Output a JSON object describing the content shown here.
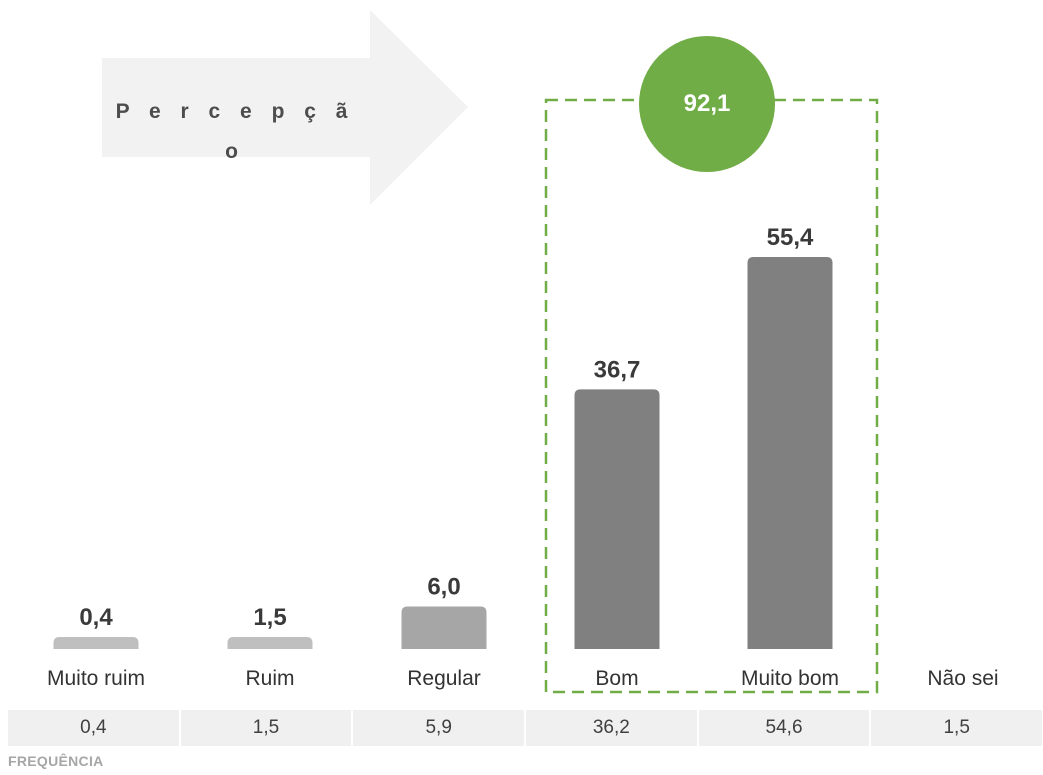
{
  "chart_data": {
    "type": "bar",
    "categories": [
      "Muito ruim",
      "Ruim",
      "Regular",
      "Bom",
      "Muito bom",
      "Não sei"
    ],
    "values": [
      0.4,
      1.5,
      6.0,
      36.7,
      55.4,
      null
    ],
    "value_labels": [
      "0,4",
      "1,5",
      "6,0",
      "36,7",
      "55,4",
      ""
    ],
    "bar_colors": [
      "#bfbfbf",
      "#bfbfbf",
      "#a6a6a6",
      "#808080",
      "#808080",
      null
    ],
    "ylim": [
      0,
      60
    ],
    "grid": false,
    "highlight": {
      "categories": [
        "Bom",
        "Muito bom"
      ],
      "total_label": "92,1",
      "box_color": "#70ad47",
      "bubble_color": "#70ad47"
    },
    "arrow": {
      "label": "P e r c e p ç ã o",
      "color": "#f2f2f2"
    },
    "frequency_row": {
      "label": "FREQUÊNCIA",
      "values": [
        "0,4",
        "1,5",
        "5,9",
        "36,2",
        "54,6",
        "1,5"
      ]
    }
  }
}
